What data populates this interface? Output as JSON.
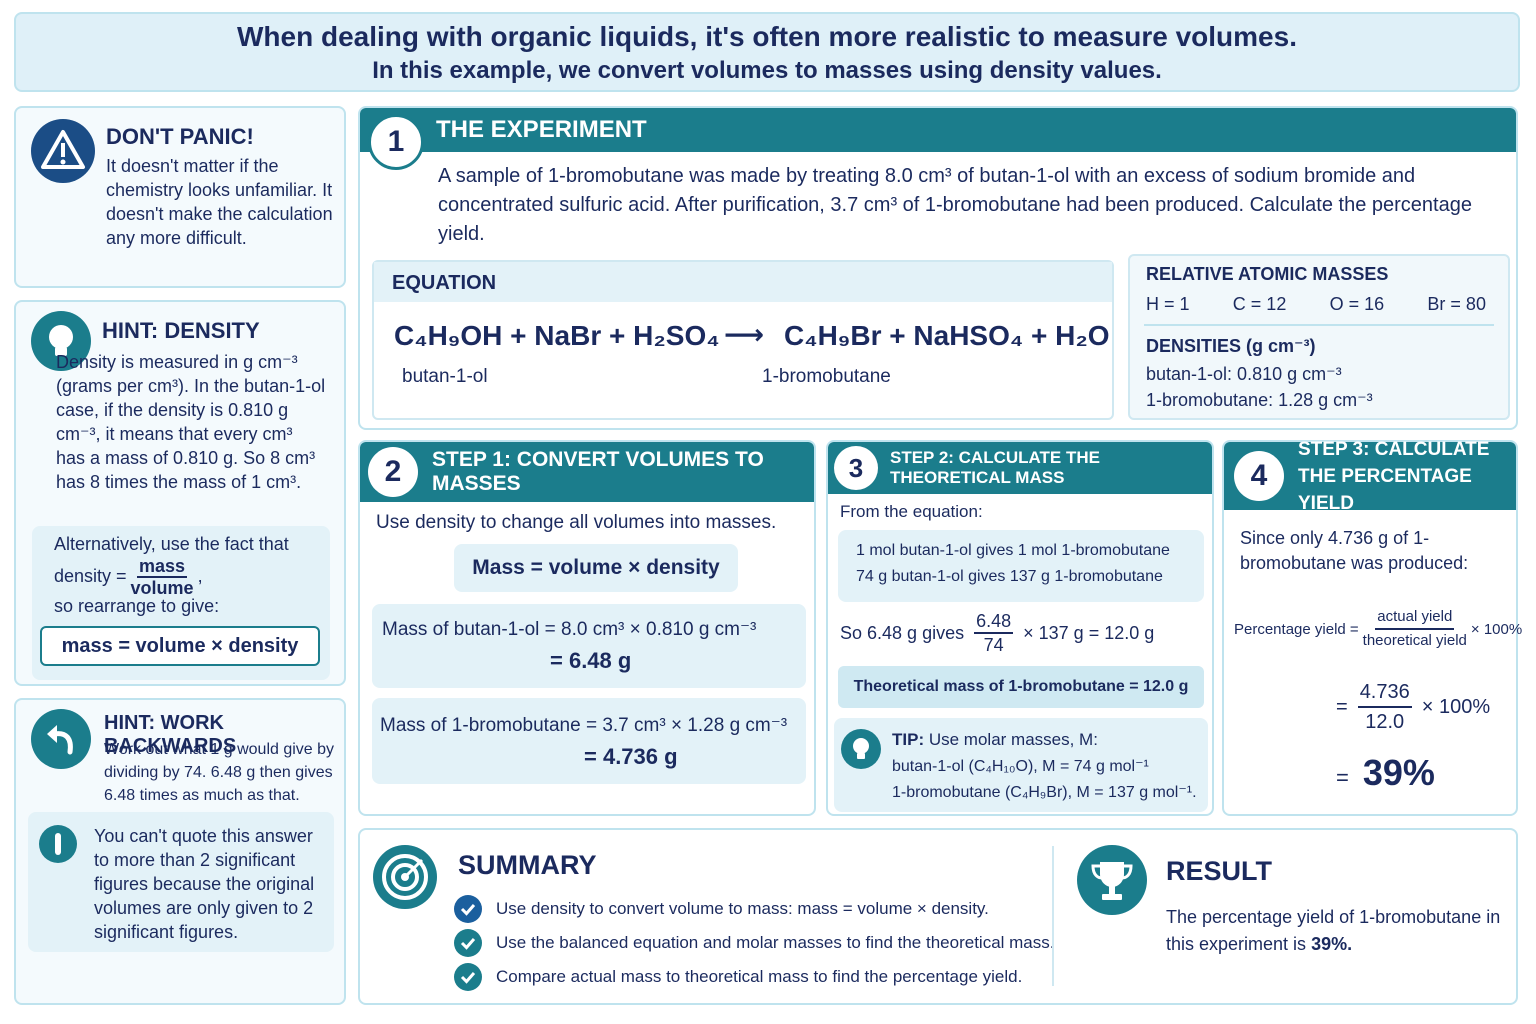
{
  "header": {
    "lines": [
      "When dealing with organic liquids, it's often more realistic to measure volumes.",
      "In this example, we convert volumes to masses using density values."
    ]
  },
  "sidebar": {
    "dont_panic": {
      "title": "DON'T PANIC!",
      "text": "It doesn't matter if the chemistry looks unfamiliar. It doesn't make the calculation any more difficult."
    },
    "hint_density": {
      "title": "HINT: DENSITY",
      "text": "Density is measured in g cm⁻³ (grams per cm³). In the butan-1-ol case, if the density is 0.810 g cm⁻³, it means that every cm³ has a mass of 0.810 g. So 8 cm³ has 8 times the mass of 1 cm³.",
      "alt_before": "Alternatively, use the fact that density =",
      "numerator": "mass",
      "denominator": "volume",
      "alt_after": "so rearrange to give:",
      "formula": "mass = volume × density"
    },
    "hint_backwards": {
      "title": "HINT: WORK BACKWARDS",
      "text": "Work out what 1 g would give by dividing by 74. 6.48 g then gives 6.48 times as much as that."
    },
    "note": {
      "text": "You can't quote this answer to more than 2 significant figures because the original volumes are only given to 2 significant figures."
    }
  },
  "experiment": {
    "number": "1",
    "title": "THE EXPERIMENT",
    "text": "A sample of 1-bromobutane was made by treating 8.0 cm³ of butan-1-ol with an excess of sodium bromide and concentrated sulfuric acid. After purification, 3.7 cm³ of 1-bromobutane had been produced. Calculate the percentage yield.",
    "equation": {
      "title": "EQUATION",
      "reactants": "C₄H₉OH + NaBr + H₂SO₄",
      "arrow": "⟶",
      "products": "C₄H₉Br + NaHSO₄ + H₂O",
      "reactant_label": "butan-1-ol",
      "product_label": "1-bromobutane"
    },
    "masses": {
      "title": "RELATIVE ATOMIC MASSES",
      "items": [
        "H = 1",
        "C = 12",
        "O = 16",
        "Br = 80"
      ],
      "densities_title": "DENSITIES (g cm⁻³)",
      "densities": [
        "butan-1-ol: 0.810 g cm⁻³",
        "1-bromobutane: 1.28 g cm⁻³"
      ]
    }
  },
  "step1": {
    "number": "2",
    "title": "STEP 1: CONVERT VOLUMES TO MASSES",
    "intro": "Use density to change all volumes into masses.",
    "formula": "Mass = volume × density",
    "calcs": [
      {
        "lhs": "Mass of butan-1-ol = 8.0 cm³ × 0.810 g cm⁻³",
        "result": "= 6.48 g"
      },
      {
        "lhs": "Mass of 1-bromobutane = 3.7 cm³ × 1.28 g cm⁻³",
        "result": "= 4.736 g"
      }
    ]
  },
  "step2": {
    "number": "3",
    "title": "STEP 2: CALCULATE THE THEORETICAL MASS",
    "intro": "From the equation:",
    "lines": [
      "1 mol butan-1-ol gives 1 mol 1-bromobutane",
      "74 g butan-1-ol gives 137 g 1-bromobutane"
    ],
    "so": {
      "prefix": "So 6.48 g gives",
      "numerator": "6.48",
      "denominator": "74",
      "suffix": "× 137 g = 12.0 g"
    },
    "result": "Theoretical mass of 1-bromobutane = 12.0 g",
    "tip": {
      "label": "TIP:",
      "text": "Use molar masses, M:",
      "lines": [
        "butan-1-ol (C₄H₁₀O), M = 74 g mol⁻¹",
        "1-bromobutane (C₄H₉Br), M = 137 g mol⁻¹."
      ]
    }
  },
  "step3": {
    "number": "4",
    "title": "STEP 3: CALCULATE THE PERCENTAGE YIELD",
    "intro": "Since only 4.736 g of 1-bromobutane was produced:",
    "formula": {
      "label": "Percentage yield =",
      "numerator": "actual yield",
      "denominator": "theoretical yield",
      "suffix": "× 100%"
    },
    "calc": {
      "eq": "=",
      "numerator": "4.736",
      "denominator": "12.0",
      "suffix": "× 100%"
    },
    "result": {
      "eq": "=",
      "value": "39%"
    }
  },
  "summary": {
    "title": "SUMMARY",
    "items": [
      "Use density to convert volume to mass: mass = volume × density.",
      "Use the balanced equation and molar masses to find the theoretical mass.",
      "Compare actual mass to theoretical mass to find the percentage yield."
    ]
  },
  "result": {
    "title": "RESULT",
    "text": "The percentage yield of 1-bromobutane in this experiment is",
    "value": "39%."
  }
}
